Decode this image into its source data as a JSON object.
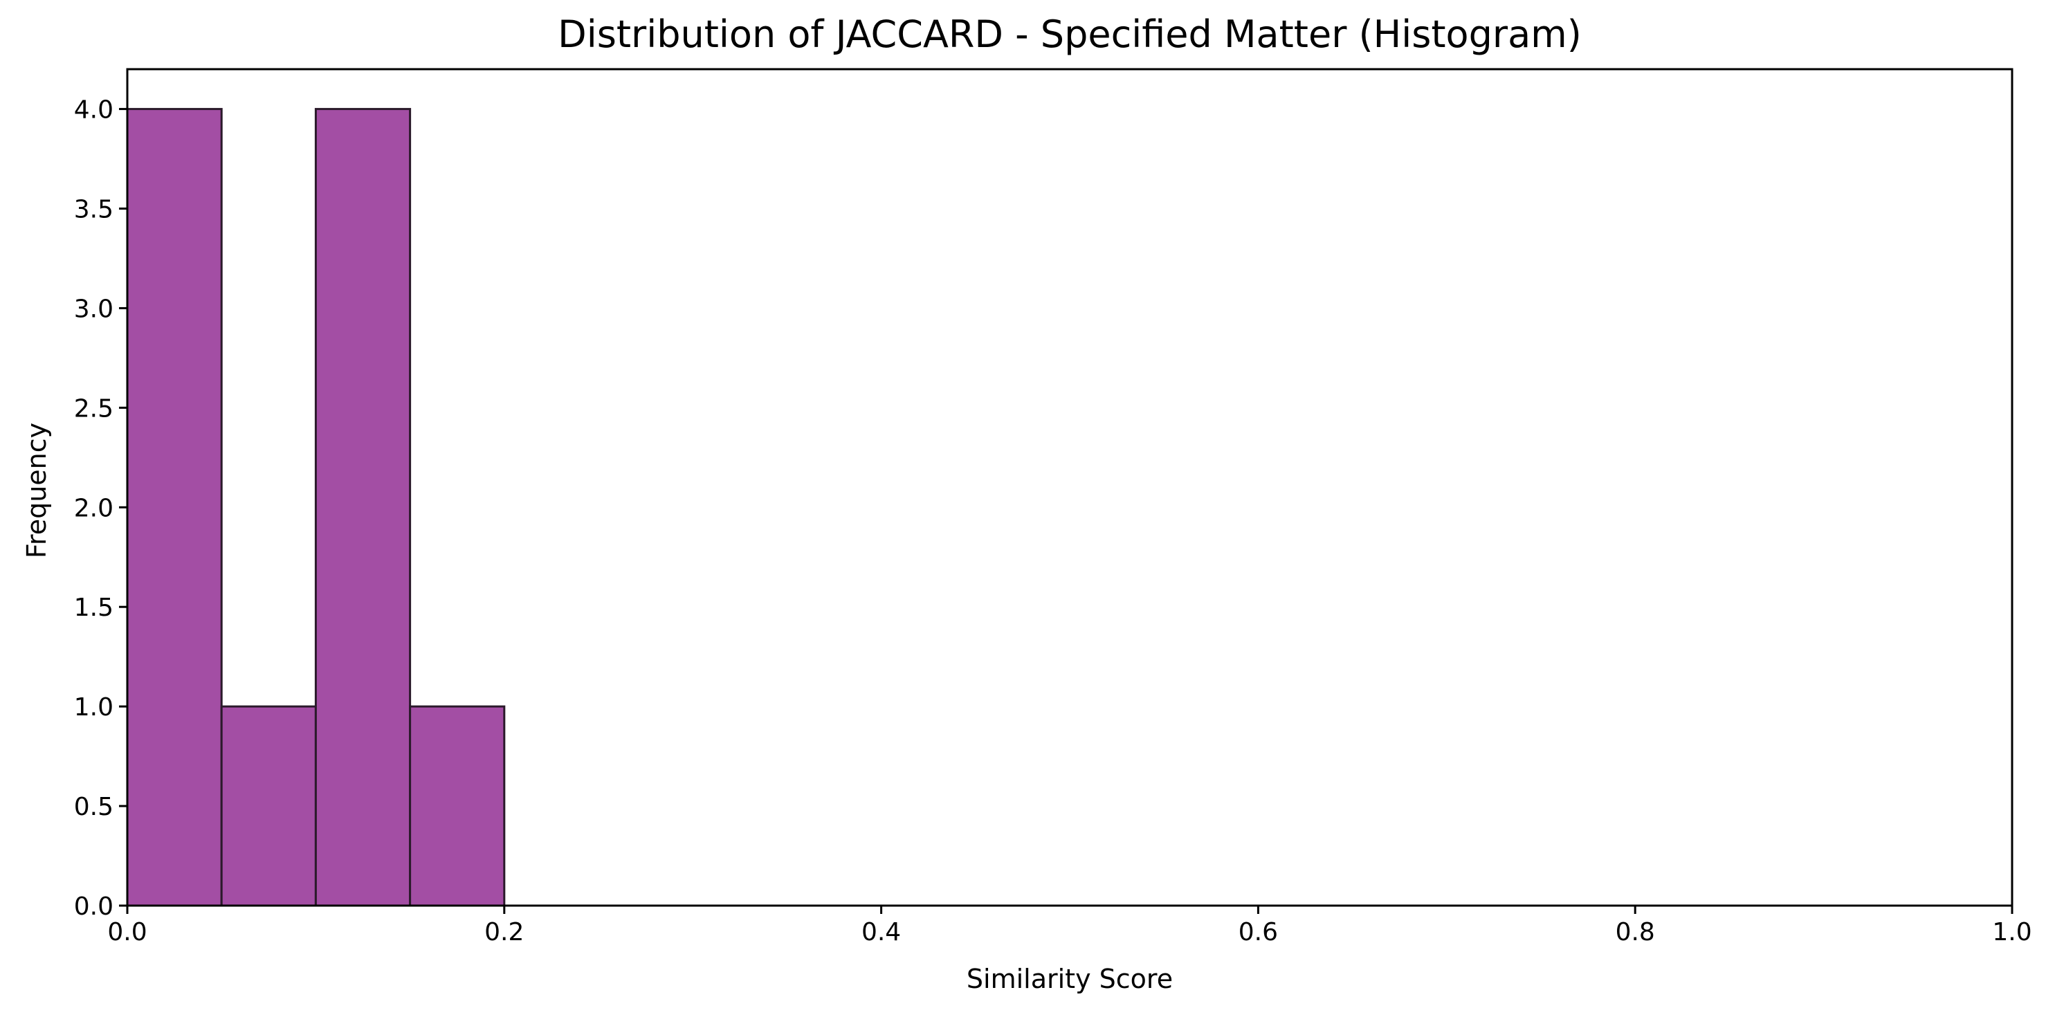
{
  "chart_data": {
    "type": "bar",
    "title": "Distribution of JACCARD - Specified Matter (Histogram)",
    "xlabel": "Similarity Score",
    "ylabel": "Frequency",
    "xlim": [
      0.0,
      1.0
    ],
    "ylim": [
      0.0,
      4.2
    ],
    "xticks": [
      "0.0",
      "0.2",
      "0.4",
      "0.6",
      "0.8",
      "1.0"
    ],
    "yticks": [
      "0.0",
      "0.5",
      "1.0",
      "1.5",
      "2.0",
      "2.5",
      "3.0",
      "3.5",
      "4.0"
    ],
    "bins": [
      {
        "start": 0.0,
        "end": 0.05,
        "value": 4
      },
      {
        "start": 0.05,
        "end": 0.1,
        "value": 1
      },
      {
        "start": 0.1,
        "end": 0.15,
        "value": 4
      },
      {
        "start": 0.15,
        "end": 0.2,
        "value": 1
      }
    ],
    "bar_color": "#a34ea4",
    "edge_color": "#2b1a2b",
    "grid": false,
    "legend": "none"
  }
}
